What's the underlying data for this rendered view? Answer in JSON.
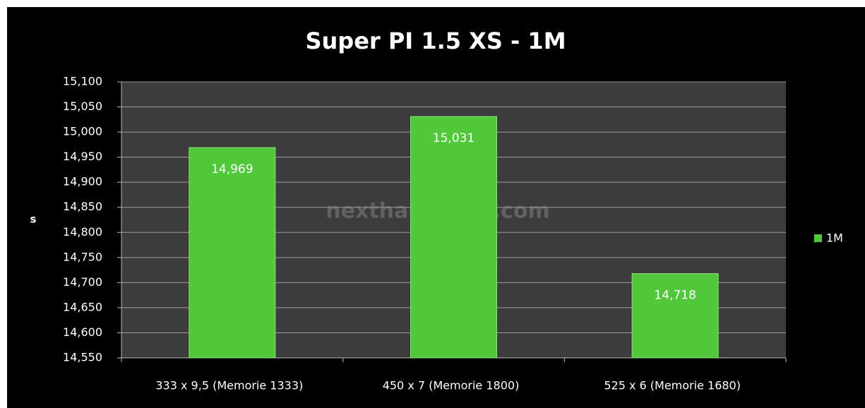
{
  "chart_data": {
    "type": "bar",
    "title": "Super PI 1.5 XS - 1M",
    "y_label": "s",
    "watermark": "nexthardware.com",
    "categories": [
      "333 x 9,5 (Memorie 1333)",
      "450 x 7 (Memorie 1800)",
      "525 x 6 (Memorie 1680)"
    ],
    "series": [
      {
        "name": "1M",
        "color": "#50c83a",
        "values": [
          14.969,
          15.031,
          14.718
        ],
        "value_labels": [
          "14,969",
          "15,031",
          "14,718"
        ]
      }
    ],
    "ylim": [
      14.55,
      15.1
    ],
    "yticks": [
      {
        "value": 14.55,
        "label": "14,550"
      },
      {
        "value": 14.6,
        "label": "14,600"
      },
      {
        "value": 14.65,
        "label": "14,650"
      },
      {
        "value": 14.7,
        "label": "14,700"
      },
      {
        "value": 14.75,
        "label": "14,750"
      },
      {
        "value": 14.8,
        "label": "14,800"
      },
      {
        "value": 14.85,
        "label": "14,850"
      },
      {
        "value": 14.9,
        "label": "14,900"
      },
      {
        "value": 14.95,
        "label": "14,950"
      },
      {
        "value": 15.0,
        "label": "15,000"
      },
      {
        "value": 15.05,
        "label": "15,050"
      },
      {
        "value": 15.1,
        "label": "15,100"
      }
    ],
    "grid": true,
    "legend": "right"
  }
}
